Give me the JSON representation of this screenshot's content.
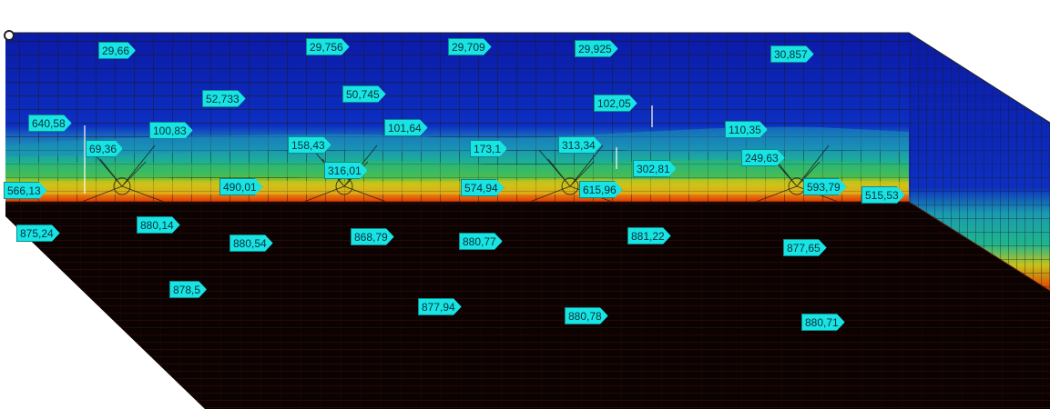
{
  "viewport": {
    "name": "Mechanical result view",
    "probes": [
      {
        "label": "29,66"
      },
      {
        "label": "29,756"
      },
      {
        "label": "29,709"
      },
      {
        "label": "29,925"
      },
      {
        "label": "30,857"
      },
      {
        "label": "52,733"
      },
      {
        "label": "50,745"
      },
      {
        "label": "102,05"
      },
      {
        "label": "640,58"
      },
      {
        "label": "100,83"
      },
      {
        "label": "101,64"
      },
      {
        "label": "110,35"
      },
      {
        "label": "69,36"
      },
      {
        "label": "158,43"
      },
      {
        "label": "173,1"
      },
      {
        "label": "313,34"
      },
      {
        "label": "249,63"
      },
      {
        "label": "316,01"
      },
      {
        "label": "302,81"
      },
      {
        "label": "566,13"
      },
      {
        "label": "490,01"
      },
      {
        "label": "574,94"
      },
      {
        "label": "615,96"
      },
      {
        "label": "593,79"
      },
      {
        "label": "515,53"
      },
      {
        "label": "875,24"
      },
      {
        "label": "880,14"
      },
      {
        "label": "880,54"
      },
      {
        "label": "868,79"
      },
      {
        "label": "880,77"
      },
      {
        "label": "881,22"
      },
      {
        "label": "877,65"
      },
      {
        "label": "878,5"
      },
      {
        "label": "877,94"
      },
      {
        "label": "880,78"
      },
      {
        "label": "880,71"
      }
    ]
  },
  "colors": {
    "probe_fill": "#19e4e4",
    "mesh_line": "#1a1a1a",
    "cold": "#0a1fb0",
    "hot": "#e03a00",
    "underside_mesh": "#c0302a"
  }
}
